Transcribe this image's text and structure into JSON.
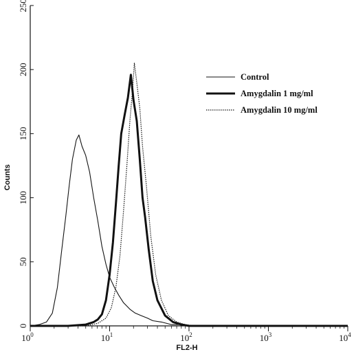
{
  "chart_data": {
    "type": "line",
    "title": "",
    "xlabel": "FL2-H",
    "ylabel": "Counts",
    "x_scale": "log",
    "xlim": [
      1,
      10000
    ],
    "ylim": [
      0,
      250
    ],
    "x_ticks": [
      {
        "value": 1,
        "base": "10",
        "exp": "0"
      },
      {
        "value": 10,
        "base": "10",
        "exp": "1"
      },
      {
        "value": 100,
        "base": "10",
        "exp": "2"
      },
      {
        "value": 1000,
        "base": "10",
        "exp": "3"
      },
      {
        "value": 10000,
        "base": "10",
        "exp": "4"
      }
    ],
    "y_ticks": [
      "0",
      "50",
      "100",
      "150",
      "200",
      "250"
    ],
    "grid": false,
    "legend_position": "top-right",
    "series": [
      {
        "name": "Control",
        "style": "thin-solid",
        "points": [
          [
            1.0,
            0
          ],
          [
            1.3,
            1
          ],
          [
            1.6,
            3
          ],
          [
            1.9,
            10
          ],
          [
            2.2,
            30
          ],
          [
            2.5,
            60
          ],
          [
            2.8,
            85
          ],
          [
            3.1,
            110
          ],
          [
            3.4,
            130
          ],
          [
            3.8,
            145
          ],
          [
            4.1,
            149
          ],
          [
            4.5,
            140
          ],
          [
            5.0,
            133
          ],
          [
            5.6,
            120
          ],
          [
            6.3,
            100
          ],
          [
            7.1,
            82
          ],
          [
            8.0,
            62
          ],
          [
            9.0,
            48
          ],
          [
            10.0,
            38
          ],
          [
            11.5,
            30
          ],
          [
            13.0,
            24
          ],
          [
            15.0,
            18
          ],
          [
            18.0,
            13
          ],
          [
            21.0,
            10
          ],
          [
            25.0,
            8
          ],
          [
            30.0,
            6
          ],
          [
            35.0,
            4
          ],
          [
            45.0,
            3
          ],
          [
            60.0,
            1
          ],
          [
            80.0,
            1
          ],
          [
            100.0,
            0
          ],
          [
            10000,
            0
          ]
        ]
      },
      {
        "name": "Amygdalin 1 mg/ml",
        "style": "thick-solid",
        "points": [
          [
            1.0,
            0
          ],
          [
            3.0,
            0
          ],
          [
            5.0,
            1
          ],
          [
            6.3,
            3
          ],
          [
            7.1,
            5
          ],
          [
            8.0,
            9
          ],
          [
            9.0,
            20
          ],
          [
            10.0,
            40
          ],
          [
            11.0,
            65
          ],
          [
            12.0,
            95
          ],
          [
            13.0,
            125
          ],
          [
            14.0,
            150
          ],
          [
            15.5,
            165
          ],
          [
            17.0,
            178
          ],
          [
            18.5,
            196
          ],
          [
            20.0,
            176
          ],
          [
            22.0,
            160
          ],
          [
            24.0,
            130
          ],
          [
            26.0,
            100
          ],
          [
            28.0,
            85
          ],
          [
            31.0,
            60
          ],
          [
            35.0,
            35
          ],
          [
            40.0,
            20
          ],
          [
            50.0,
            8
          ],
          [
            63.0,
            3
          ],
          [
            80.0,
            1
          ],
          [
            100.0,
            0
          ],
          [
            10000,
            0
          ]
        ]
      },
      {
        "name": "Amygdalin 10 mg/ml",
        "style": "dotted",
        "points": [
          [
            1.0,
            0
          ],
          [
            5.0,
            0
          ],
          [
            7.1,
            2
          ],
          [
            9.0,
            6
          ],
          [
            10.5,
            14
          ],
          [
            12.0,
            30
          ],
          [
            13.5,
            55
          ],
          [
            15.0,
            90
          ],
          [
            16.5,
            125
          ],
          [
            18.0,
            160
          ],
          [
            19.5,
            185
          ],
          [
            20.5,
            205
          ],
          [
            22.0,
            190
          ],
          [
            24.0,
            170
          ],
          [
            26.0,
            140
          ],
          [
            29.0,
            110
          ],
          [
            33.0,
            70
          ],
          [
            38.0,
            40
          ],
          [
            45.0,
            20
          ],
          [
            55.0,
            8
          ],
          [
            70.0,
            3
          ],
          [
            90.0,
            1
          ],
          [
            120.0,
            0
          ],
          [
            10000,
            0
          ]
        ]
      }
    ]
  }
}
